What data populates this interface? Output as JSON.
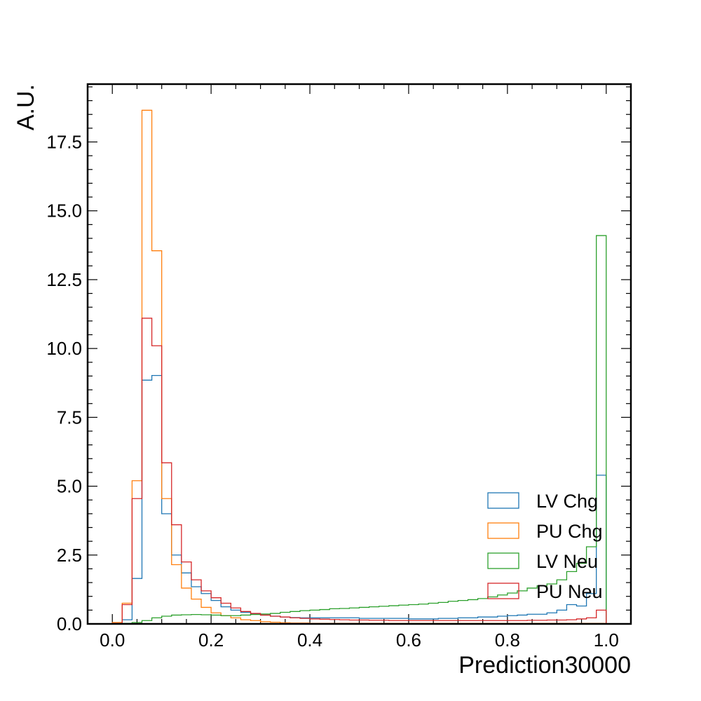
{
  "chart_data": {
    "type": "histogram",
    "xlabel": "Prediction30000",
    "ylabel": "A.U.",
    "xlim": [
      -0.05,
      1.05
    ],
    "ylim": [
      0,
      19.6
    ],
    "x_ticks": [
      "0.0",
      "0.2",
      "0.4",
      "0.6",
      "0.8",
      "1.0"
    ],
    "y_ticks": [
      "0.0",
      "2.5",
      "5.0",
      "7.5",
      "10.0",
      "12.5",
      "15.0",
      "17.5"
    ],
    "grid": false,
    "legend_position": "lower right",
    "bin_width": 0.02,
    "bin_start": 0.0,
    "series": [
      {
        "name": "LV Chg",
        "color": "#1f77b4",
        "values": [
          0.02,
          0.15,
          1.65,
          8.85,
          9.02,
          4.0,
          2.5,
          1.85,
          1.35,
          1.1,
          0.85,
          0.62,
          0.5,
          0.42,
          0.36,
          0.32,
          0.28,
          0.25,
          0.23,
          0.22,
          0.22,
          0.22,
          0.22,
          0.22,
          0.22,
          0.2,
          0.2,
          0.2,
          0.2,
          0.2,
          0.18,
          0.18,
          0.18,
          0.2,
          0.2,
          0.22,
          0.22,
          0.25,
          0.25,
          0.28,
          0.3,
          0.32,
          0.35,
          0.35,
          0.4,
          0.5,
          0.7,
          0.65,
          1.1,
          5.4
        ]
      },
      {
        "name": "PU Chg",
        "color": "#ff7f0e",
        "values": [
          0.05,
          0.75,
          5.2,
          18.65,
          13.55,
          4.55,
          2.15,
          1.3,
          0.9,
          0.6,
          0.4,
          0.3,
          0.22,
          0.15,
          0.12,
          0.08,
          0.06,
          0.04,
          0.03,
          0.03,
          0.02,
          0.02,
          0.02,
          0.02,
          0.02,
          0.02,
          0.02,
          0.02,
          0.02,
          0.02,
          0.02,
          0.02,
          0.02,
          0.02,
          0.02,
          0.02,
          0.02,
          0.02,
          0.02,
          0.02,
          0.02,
          0.02,
          0.02,
          0.02,
          0.02,
          0.02,
          0.02,
          0.02,
          0.02,
          0.02
        ]
      },
      {
        "name": "LV Neu",
        "color": "#2ca02c",
        "values": [
          0.01,
          0.02,
          0.05,
          0.12,
          0.22,
          0.28,
          0.32,
          0.33,
          0.34,
          0.33,
          0.32,
          0.3,
          0.3,
          0.32,
          0.34,
          0.36,
          0.38,
          0.42,
          0.45,
          0.48,
          0.5,
          0.52,
          0.55,
          0.56,
          0.58,
          0.6,
          0.62,
          0.64,
          0.66,
          0.68,
          0.7,
          0.72,
          0.75,
          0.78,
          0.82,
          0.85,
          0.88,
          0.92,
          0.98,
          1.05,
          1.12,
          1.2,
          1.3,
          1.38,
          1.45,
          1.6,
          1.9,
          2.2,
          2.8,
          14.1
        ]
      },
      {
        "name": "PU Neu",
        "color": "#d62728",
        "values": [
          0.02,
          0.7,
          4.55,
          11.1,
          10.1,
          5.85,
          3.6,
          2.25,
          1.6,
          1.2,
          0.95,
          0.75,
          0.58,
          0.45,
          0.38,
          0.32,
          0.28,
          0.25,
          0.22,
          0.2,
          0.18,
          0.17,
          0.16,
          0.15,
          0.14,
          0.14,
          0.13,
          0.13,
          0.12,
          0.12,
          0.12,
          0.12,
          0.12,
          0.12,
          0.12,
          0.12,
          0.12,
          0.12,
          0.12,
          0.12,
          0.12,
          0.12,
          0.13,
          0.13,
          0.14,
          0.14,
          0.15,
          0.18,
          0.22,
          0.5
        ]
      }
    ]
  }
}
